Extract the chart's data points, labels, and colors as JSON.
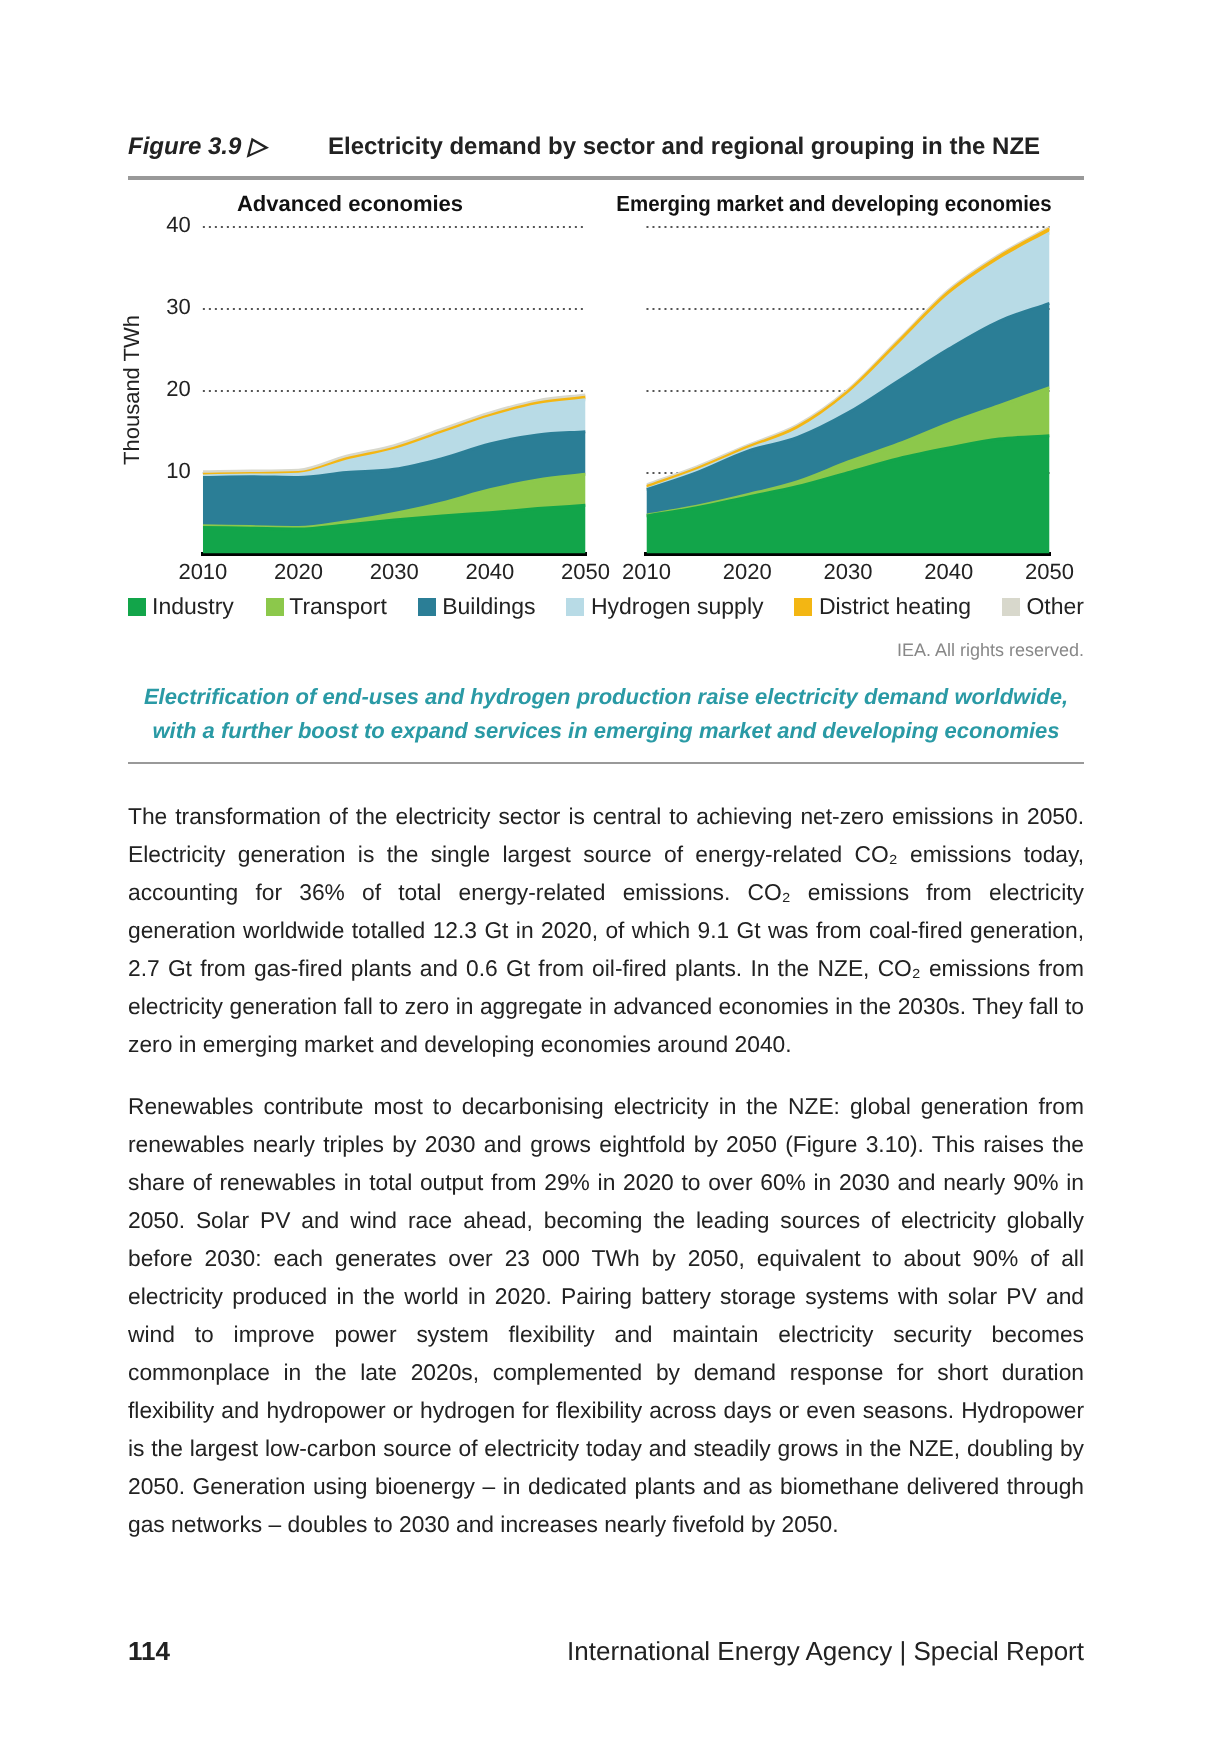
{
  "chart_data": [
    {
      "type": "area",
      "title": "Advanced economies",
      "ylabel": "Thousand TWh",
      "stacked": true,
      "grid": "y",
      "legend": "bottom",
      "x": [
        2010,
        2015,
        2020,
        2025,
        2030,
        2035,
        2040,
        2045,
        2050
      ],
      "xlim": [
        2010,
        2050
      ],
      "xticks": [
        2010,
        2020,
        2030,
        2040,
        2050
      ],
      "ylim": [
        0,
        40
      ],
      "yticks": [
        10,
        20,
        30,
        40
      ],
      "series": [
        {
          "name": "Industry",
          "color": "#12a54a",
          "values": [
            3.2,
            3.1,
            3.0,
            3.5,
            4.1,
            4.6,
            5.0,
            5.5,
            5.9
          ]
        },
        {
          "name": "Transport",
          "color": "#8cc84b",
          "values": [
            0.2,
            0.2,
            0.2,
            0.4,
            0.8,
            1.6,
            2.8,
            3.5,
            3.8
          ]
        },
        {
          "name": "Buildings",
          "color": "#2b7e96",
          "values": [
            5.9,
            6.1,
            6.1,
            6.0,
            5.4,
            5.4,
            5.6,
            5.5,
            5.2
          ]
        },
        {
          "name": "Hydrogen supply",
          "color": "#b8dbe6",
          "values": [
            0.2,
            0.2,
            0.4,
            1.4,
            2.3,
            3.0,
            3.2,
            3.6,
            3.9
          ]
        },
        {
          "name": "District heating",
          "color": "#f3b613",
          "values": [
            0.2,
            0.2,
            0.2,
            0.3,
            0.3,
            0.3,
            0.3,
            0.3,
            0.3
          ]
        },
        {
          "name": "Other",
          "color": "#d8d8cc",
          "values": [
            0.3,
            0.3,
            0.3,
            0.3,
            0.3,
            0.3,
            0.3,
            0.3,
            0.3
          ]
        }
      ],
      "annotations": [
        "Figure 3.9 ▷",
        "Electricity demand by sector and regional grouping in the NZE",
        "IEA. All rights reserved.",
        "Electrification of end-uses and hydrogen production raise electricity demand worldwide, with a further boost to expand services in emerging market and developing economies",
        "The transformation of the electricity sector is central to achieving net-zero emissions in 2050. Electricity generation is the single largest source of energy-related CO₂ emissions today, accounting for 36% of total energy-related emissions. CO₂ emissions from electricity generation worldwide totalled 12.3 Gt in 2020, of which 9.1 Gt was from coal-fired generation, 2.7 Gt from gas-fired plants and 0.6 Gt from oil-fired plants. In the NZE, CO₂ emissions from electricity generation fall to zero in aggregate in advanced economies in the 2030s. They fall to zero in emerging market and developing economies around 2040.",
        "Renewables contribute most to decarbonising electricity in the NZE: global generation from renewables nearly triples by 2030 and grows eightfold by 2050 (Figure 3.10). This raises the share of renewables in total output from 29% in 2020 to over 60% in 2030 and nearly 90% in 2050. Solar PV and wind race ahead, becoming the leading sources of electricity globally before 2030: each generates over 23 000 TWh by 2050, equivalent to about 90% of all electricity produced in the world in 2020. Pairing battery storage systems with solar PV and wind to improve power system flexibility and maintain electricity security becomes commonplace in the late 2020s, complemented by demand response for short duration flexibility and hydropower or hydrogen for flexibility across days or even seasons. Hydropower is the largest low-carbon source of electricity today and steadily grows in the NZE, doubling by 2050. Generation using bioenergy – in dedicated plants and as biomethane delivered through gas networks – doubles to 2030 and increases nearly fivefold by 2050.",
        "114",
        "International Energy Agency  |  Special Report"
      ]
    },
    {
      "type": "area",
      "title": "Emerging market and developing economies",
      "stacked": true,
      "grid": "y",
      "tick_labels": "x",
      "x": [
        2010,
        2015,
        2020,
        2025,
        2030,
        2035,
        2040,
        2045,
        2050
      ],
      "xlim": [
        2010,
        2050
      ],
      "xticks": [
        2010,
        2020,
        2030,
        2040,
        2050
      ],
      "ylim": [
        0,
        40
      ],
      "yticks": [
        10,
        20,
        30,
        40
      ],
      "series": [
        {
          "color": "#12a54a",
          "values": [
            4.6,
            5.6,
            6.9,
            8.2,
            9.9,
            11.6,
            12.9,
            14.0,
            14.4
          ]
        },
        {
          "color": "#8cc84b",
          "values": [
            0.1,
            0.2,
            0.3,
            0.6,
            1.3,
            1.8,
            3.0,
            4.1,
            5.9
          ]
        },
        {
          "color": "#2b7e96",
          "values": [
            3.1,
            4.1,
            5.3,
            5.4,
            6.0,
            7.7,
            9.1,
            10.3,
            10.3
          ]
        },
        {
          "color": "#b8dbe6",
          "values": [
            0.1,
            0.2,
            0.2,
            0.9,
            2.2,
            4.3,
            6.5,
            7.4,
            8.6
          ]
        },
        {
          "color": "#f3b613",
          "values": [
            0.3,
            0.3,
            0.3,
            0.4,
            0.4,
            0.5,
            0.5,
            0.5,
            0.5
          ]
        },
        {
          "color": "#d8d8cc",
          "values": [
            0.2,
            0.2,
            0.2,
            0.2,
            0.2,
            0.2,
            0.2,
            0.2,
            0.2
          ]
        }
      ]
    }
  ]
}
